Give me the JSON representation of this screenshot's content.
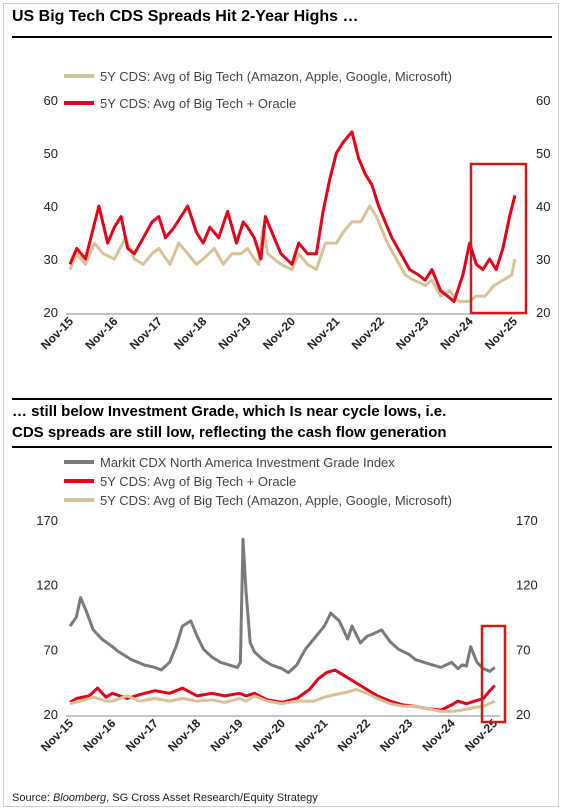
{
  "title": "US Big Tech CDS Spreads Hit 2-Year Highs …",
  "subtitle_line1": "… still below Investment Grade, which Is near cycle lows, i.e.",
  "subtitle_line2": "CDS spreads are still low, reflecting the cash flow generation",
  "source_prefix": "Source: ",
  "source_italic": "Bloomberg",
  "source_rest": ", SG Cross Asset Research/Equity Strategy",
  "colors": {
    "tan": "#d8c297",
    "red": "#e3001b",
    "grey": "#7a7a7a",
    "highlight": "#cc1b1b"
  },
  "chart_data": [
    {
      "type": "line",
      "title": "US Big Tech CDS Spreads Hit 2-Year Highs …",
      "ylim": [
        20,
        60
      ],
      "yticks": [
        20,
        30,
        40,
        50,
        60
      ],
      "xticks": [
        "Nov-15",
        "Nov-16",
        "Nov-17",
        "Nov-18",
        "Nov-19",
        "Nov-20",
        "Nov-21",
        "Nov-22",
        "Nov-23",
        "Nov-24",
        "Nov-25"
      ],
      "series": [
        {
          "name": "5Y CDS: Avg of Big Tech (Amazon, Apple, Google, Microsoft)",
          "color": "#d8c297",
          "x": [
            2015.85,
            2016.0,
            2016.2,
            2016.4,
            2016.6,
            2016.85,
            2017.1,
            2017.3,
            2017.5,
            2017.7,
            2017.85,
            2018.1,
            2018.3,
            2018.5,
            2018.7,
            2018.85,
            2019.1,
            2019.3,
            2019.5,
            2019.7,
            2019.85,
            2020.0,
            2020.1,
            2020.2,
            2020.3,
            2020.45,
            2020.6,
            2020.85,
            2021.0,
            2021.2,
            2021.4,
            2021.6,
            2021.85,
            2022.0,
            2022.2,
            2022.4,
            2022.6,
            2022.75,
            2022.85,
            2023.0,
            2023.2,
            2023.4,
            2023.6,
            2023.85,
            2024.0,
            2024.2,
            2024.4,
            2024.6,
            2024.85,
            2025.0,
            2025.2,
            2025.4,
            2025.6,
            2025.8,
            2025.87
          ],
          "values": [
            28,
            31,
            29,
            33,
            31,
            30,
            34,
            30,
            29,
            31,
            32,
            29,
            33,
            31,
            29,
            30,
            32,
            29,
            31,
            31,
            32,
            30,
            29,
            36,
            31,
            30,
            29,
            28,
            31,
            29,
            28,
            33,
            33,
            35,
            37,
            37,
            40,
            38,
            36,
            33,
            30,
            27,
            26,
            25,
            26,
            23,
            24,
            22,
            22,
            23,
            23,
            25,
            26,
            27,
            30
          ]
        },
        {
          "name": "5Y CDS: Avg of Big Tech + Oracle",
          "color": "#e3001b",
          "x": [
            2015.85,
            2016.0,
            2016.2,
            2016.35,
            2016.5,
            2016.7,
            2016.85,
            2017.0,
            2017.15,
            2017.3,
            2017.5,
            2017.7,
            2017.85,
            2018.0,
            2018.2,
            2018.35,
            2018.5,
            2018.7,
            2018.85,
            2019.0,
            2019.2,
            2019.4,
            2019.6,
            2019.75,
            2019.85,
            2020.0,
            2020.15,
            2020.25,
            2020.4,
            2020.6,
            2020.85,
            2021.0,
            2021.2,
            2021.4,
            2021.55,
            2021.7,
            2021.85,
            2022.0,
            2022.2,
            2022.35,
            2022.5,
            2022.65,
            2022.8,
            2022.95,
            2023.1,
            2023.3,
            2023.5,
            2023.7,
            2023.85,
            2024.0,
            2024.2,
            2024.35,
            2024.5,
            2024.7,
            2024.85,
            2025.0,
            2025.15,
            2025.3,
            2025.45,
            2025.6,
            2025.75,
            2025.87
          ],
          "values": [
            29,
            32,
            30,
            35,
            40,
            33,
            36,
            38,
            32,
            31,
            34,
            37,
            38,
            34,
            36,
            38,
            40,
            35,
            33,
            36,
            34,
            39,
            33,
            37,
            36,
            34,
            30,
            38,
            35,
            31,
            29,
            33,
            31,
            31,
            39,
            45,
            50,
            52,
            54,
            49,
            46,
            44,
            40,
            37,
            34,
            31,
            28,
            27,
            26,
            28,
            24,
            23,
            22,
            27,
            33,
            29,
            28,
            30,
            28,
            32,
            38,
            42
          ]
        }
      ]
    },
    {
      "type": "line",
      "title": "… still below Investment Grade, which Is near cycle lows, i.e. CDS spreads are still low, reflecting the cash flow generation",
      "ylim": [
        20,
        170
      ],
      "yticks": [
        20,
        70,
        120,
        170
      ],
      "xticks": [
        "Nov-15",
        "Nov-16",
        "Nov-17",
        "Nov-18",
        "Nov-19",
        "Nov-20",
        "Nov-21",
        "Nov-22",
        "Nov-23",
        "Nov-24",
        "Nov-25"
      ],
      "series": [
        {
          "name": "Markit CDX North America Investment Grade Index",
          "color": "#7a7a7a",
          "x": [
            2015.85,
            2016.0,
            2016.1,
            2016.25,
            2016.4,
            2016.6,
            2016.85,
            2017.0,
            2017.3,
            2017.6,
            2017.85,
            2018.0,
            2018.2,
            2018.35,
            2018.5,
            2018.7,
            2018.85,
            2019.0,
            2019.2,
            2019.4,
            2019.6,
            2019.8,
            2019.87,
            2019.93,
            2020.0,
            2020.1,
            2020.2,
            2020.4,
            2020.6,
            2020.85,
            2021.0,
            2021.2,
            2021.4,
            2021.6,
            2021.85,
            2022.0,
            2022.2,
            2022.4,
            2022.5,
            2022.7,
            2022.85,
            2023.0,
            2023.2,
            2023.4,
            2023.6,
            2023.85,
            2024.0,
            2024.2,
            2024.4,
            2024.6,
            2024.85,
            2025.0,
            2025.1,
            2025.2,
            2025.3,
            2025.45,
            2025.6,
            2025.75,
            2025.87
          ],
          "values": [
            88,
            95,
            110,
            98,
            85,
            78,
            72,
            68,
            62,
            58,
            56,
            54,
            60,
            72,
            88,
            92,
            80,
            70,
            64,
            60,
            58,
            56,
            60,
            155,
            115,
            75,
            68,
            62,
            58,
            55,
            52,
            58,
            70,
            78,
            88,
            98,
            92,
            78,
            88,
            75,
            80,
            82,
            85,
            76,
            70,
            66,
            62,
            60,
            58,
            56,
            60,
            55,
            58,
            57,
            72,
            60,
            55,
            53,
            56
          ]
        },
        {
          "name": "5Y CDS: Avg of Big Tech + Oracle",
          "color": "#e3001b",
          "x": [
            2015.85,
            2016.0,
            2016.3,
            2016.5,
            2016.7,
            2016.85,
            2017.2,
            2017.5,
            2017.85,
            2018.2,
            2018.5,
            2018.85,
            2019.2,
            2019.5,
            2019.85,
            2020.0,
            2020.2,
            2020.5,
            2020.85,
            2021.2,
            2021.5,
            2021.7,
            2021.9,
            2022.1,
            2022.3,
            2022.5,
            2022.7,
            2022.9,
            2023.1,
            2023.4,
            2023.7,
            2024.0,
            2024.3,
            2024.6,
            2024.85,
            2025.0,
            2025.2,
            2025.4,
            2025.6,
            2025.75,
            2025.87
          ],
          "values": [
            29,
            32,
            34,
            40,
            33,
            36,
            32,
            35,
            38,
            36,
            40,
            34,
            36,
            34,
            36,
            34,
            36,
            31,
            29,
            32,
            39,
            47,
            52,
            54,
            50,
            46,
            42,
            38,
            34,
            30,
            27,
            26,
            24,
            23,
            27,
            30,
            28,
            30,
            32,
            38,
            42
          ]
        },
        {
          "name": "5Y CDS: Avg of Big Tech (Amazon, Apple, Google, Microsoft)",
          "color": "#d8c297",
          "x": [
            2015.85,
            2016.1,
            2016.4,
            2016.7,
            2016.85,
            2017.2,
            2017.5,
            2017.85,
            2018.2,
            2018.5,
            2018.85,
            2019.2,
            2019.5,
            2019.85,
            2020.0,
            2020.2,
            2020.5,
            2020.85,
            2021.2,
            2021.6,
            2021.85,
            2022.1,
            2022.4,
            2022.6,
            2022.85,
            2023.1,
            2023.4,
            2023.7,
            2024.0,
            2024.3,
            2024.6,
            2024.85,
            2025.1,
            2025.4,
            2025.6,
            2025.87
          ],
          "values": [
            28,
            30,
            33,
            30,
            30,
            34,
            30,
            32,
            30,
            32,
            30,
            31,
            29,
            32,
            30,
            34,
            30,
            28,
            30,
            30,
            33,
            35,
            37,
            39,
            36,
            32,
            28,
            26,
            26,
            24,
            22,
            22,
            23,
            25,
            26,
            30
          ]
        }
      ]
    }
  ]
}
